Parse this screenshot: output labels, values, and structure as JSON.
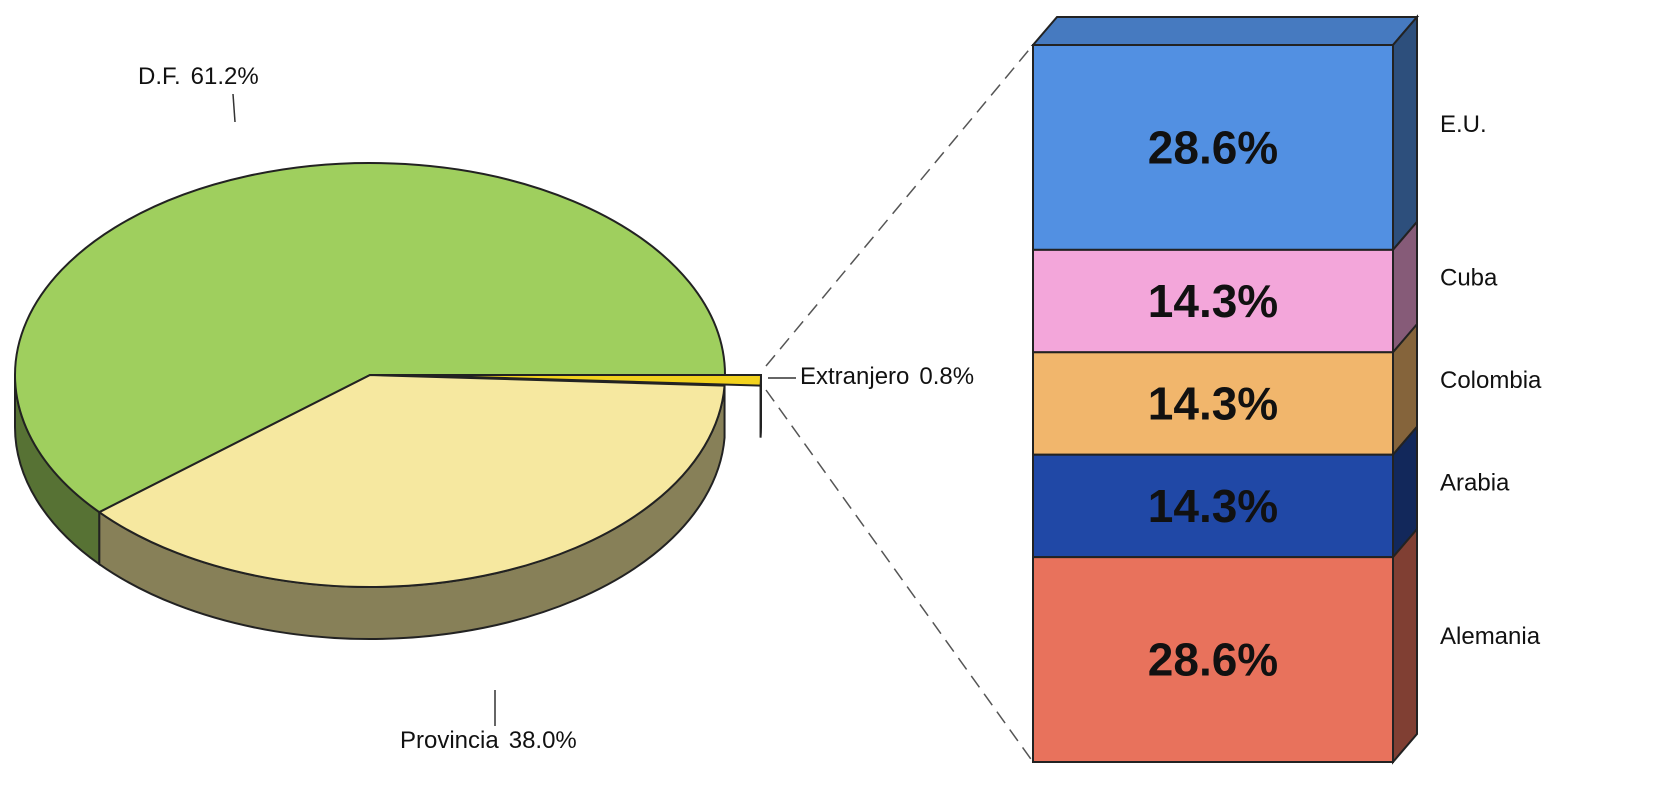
{
  "chart_data": [
    {
      "type": "pie",
      "categories": [
        "D.F.",
        "Provincia",
        "Extranjero"
      ],
      "values": [
        61.2,
        38.0,
        0.8
      ],
      "value_labels": [
        "61.2%",
        "38.0%",
        "0.8%"
      ],
      "colors": [
        "#9fcf5e",
        "#f6e8a0",
        "#f2d21e"
      ]
    },
    {
      "type": "bar",
      "categories": [
        "E.U.",
        "Cuba",
        "Colombia",
        "Arabia",
        "Alemania"
      ],
      "values": [
        28.6,
        14.3,
        14.3,
        14.3,
        28.6
      ],
      "value_labels": [
        "28.6%",
        "14.3%",
        "14.3%",
        "14.3%",
        "28.6%"
      ],
      "colors": [
        "#5290e2",
        "#f3a6da",
        "#f1b66c",
        "#2048a6",
        "#e8725c"
      ]
    }
  ]
}
